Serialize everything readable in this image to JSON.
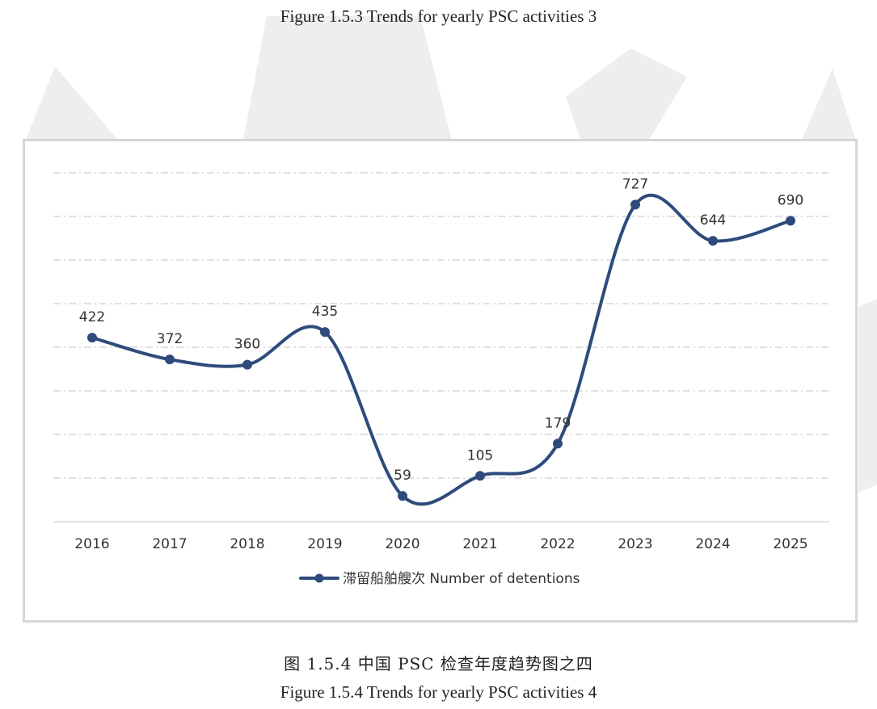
{
  "caption_top": "Figure 1.5.3 Trends for yearly PSC activities 3",
  "caption_cn": "图 1.5.4 中国 PSC 检查年度趋势图之四",
  "caption_en": "Figure 1.5.4 Trends for yearly PSC activities 4",
  "colors": {
    "series": "#2f4b7c",
    "grid": "#cfcfcf",
    "watermark": "#eceef0"
  },
  "chart_data": {
    "type": "line",
    "smooth": true,
    "categories": [
      "2016",
      "2017",
      "2018",
      "2019",
      "2020",
      "2021",
      "2022",
      "2023",
      "2024",
      "2025"
    ],
    "series": [
      {
        "name": "滞留船舶艘次 Number of detentions",
        "values": [
          422,
          372,
          360,
          435,
          59,
          105,
          179,
          727,
          644,
          690
        ]
      }
    ],
    "ylim": [
      0,
      800
    ],
    "grid": true,
    "legend": "bottom",
    "data_labels": true
  }
}
